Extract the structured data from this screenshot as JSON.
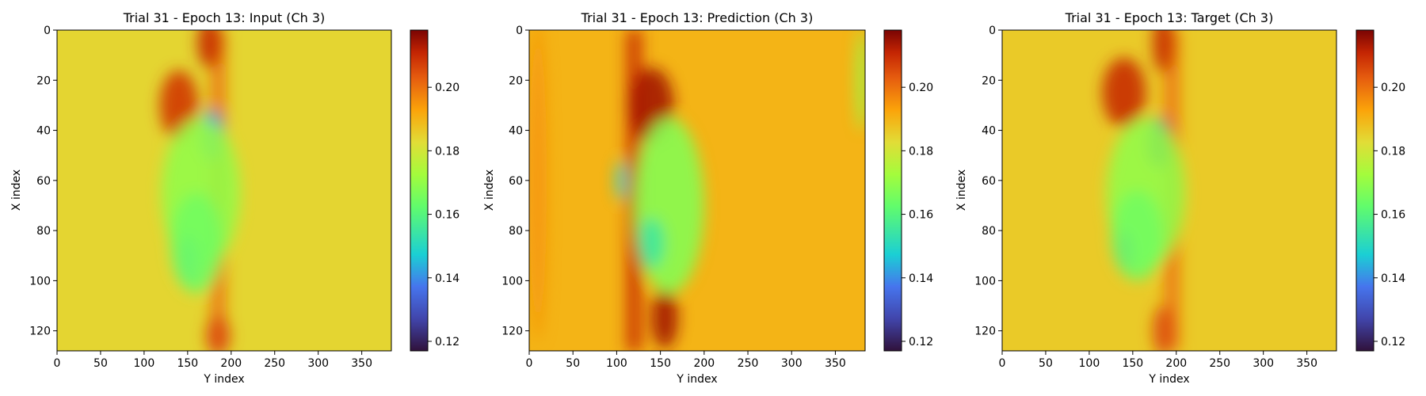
{
  "chart_data": [
    {
      "type": "heatmap",
      "title": "Trial 31 - Epoch 13: Input (Ch 3)",
      "xlabel": "Y index",
      "ylabel": "X index",
      "xlim": [
        0,
        384
      ],
      "ylim": [
        128,
        0
      ],
      "xticks": [
        0,
        50,
        100,
        150,
        200,
        250,
        300,
        350
      ],
      "yticks": [
        0,
        20,
        40,
        60,
        80,
        100,
        120
      ],
      "colorbar": {
        "cmap": "turbo",
        "range": [
          0.117,
          0.218
        ],
        "ticks": [
          0.12,
          0.14,
          0.16,
          0.18,
          0.2
        ],
        "tick_labels": [
          "0.12",
          "0.14",
          "0.16",
          "0.18",
          "0.20"
        ]
      },
      "background_value": 0.184,
      "features": [
        {
          "kind": "band",
          "x": 185,
          "y_range": [
            0,
            128
          ],
          "width": 18,
          "value": 0.2
        },
        {
          "kind": "blob",
          "x": 140,
          "y": 30,
          "rx": 22,
          "ry": 14,
          "value": 0.208
        },
        {
          "kind": "blob",
          "x": 175,
          "y": 5,
          "rx": 14,
          "ry": 10,
          "value": 0.21
        },
        {
          "kind": "blob",
          "x": 185,
          "y": 122,
          "rx": 14,
          "ry": 8,
          "value": 0.205
        },
        {
          "kind": "blob",
          "x": 178,
          "y": 42,
          "rx": 14,
          "ry": 10,
          "value": 0.14
        },
        {
          "kind": "blob",
          "x": 165,
          "y": 65,
          "rx": 45,
          "ry": 30,
          "value": 0.17
        },
        {
          "kind": "blob",
          "x": 150,
          "y": 92,
          "rx": 12,
          "ry": 10,
          "value": 0.145
        },
        {
          "kind": "blob",
          "x": 160,
          "y": 85,
          "rx": 30,
          "ry": 20,
          "value": 0.165
        }
      ]
    },
    {
      "type": "heatmap",
      "title": "Trial 31 - Epoch 13: Prediction (Ch 3)",
      "xlabel": "Y index",
      "ylabel": "X index",
      "xlim": [
        0,
        384
      ],
      "ylim": [
        128,
        0
      ],
      "xticks": [
        0,
        50,
        100,
        150,
        200,
        250,
        300,
        350
      ],
      "yticks": [
        0,
        20,
        40,
        60,
        80,
        100,
        120
      ],
      "colorbar": {
        "cmap": "turbo",
        "range": [
          0.117,
          0.218
        ],
        "ticks": [
          0.12,
          0.14,
          0.16,
          0.18,
          0.2
        ],
        "tick_labels": [
          "0.12",
          "0.14",
          "0.16",
          "0.18",
          "0.20"
        ]
      },
      "background_value": 0.19,
      "features": [
        {
          "kind": "band",
          "x": 120,
          "y_range": [
            0,
            128
          ],
          "width": 18,
          "value": 0.21
        },
        {
          "kind": "blob",
          "x": 140,
          "y": 30,
          "rx": 25,
          "ry": 15,
          "value": 0.214
        },
        {
          "kind": "blob",
          "x": 155,
          "y": 115,
          "rx": 15,
          "ry": 12,
          "value": 0.214
        },
        {
          "kind": "blob",
          "x": 160,
          "y": 70,
          "rx": 40,
          "ry": 35,
          "value": 0.168
        },
        {
          "kind": "blob",
          "x": 140,
          "y": 85,
          "rx": 15,
          "ry": 10,
          "value": 0.155
        },
        {
          "kind": "blob",
          "x": 105,
          "y": 60,
          "rx": 6,
          "ry": 8,
          "value": 0.15
        },
        {
          "kind": "blob",
          "x": 10,
          "y": 60,
          "rx": 10,
          "ry": 64,
          "value": 0.195
        },
        {
          "kind": "blob",
          "x": 380,
          "y": 20,
          "rx": 6,
          "ry": 20,
          "value": 0.17
        }
      ]
    },
    {
      "type": "heatmap",
      "title": "Trial 31 - Epoch 13: Target (Ch 3)",
      "xlabel": "Y index",
      "ylabel": "X index",
      "xlim": [
        0,
        384
      ],
      "ylim": [
        128,
        0
      ],
      "xticks": [
        0,
        50,
        100,
        150,
        200,
        250,
        300,
        350
      ],
      "yticks": [
        0,
        20,
        40,
        60,
        80,
        100,
        120
      ],
      "colorbar": {
        "cmap": "turbo",
        "range": [
          0.117,
          0.218
        ],
        "ticks": [
          0.12,
          0.14,
          0.16,
          0.18,
          0.2
        ],
        "tick_labels": [
          "0.12",
          "0.14",
          "0.16",
          "0.18",
          "0.20"
        ]
      },
      "background_value": 0.186,
      "features": [
        {
          "kind": "band",
          "x": 195,
          "y_range": [
            0,
            128
          ],
          "width": 18,
          "value": 0.2
        },
        {
          "kind": "blob",
          "x": 140,
          "y": 25,
          "rx": 25,
          "ry": 14,
          "value": 0.21
        },
        {
          "kind": "blob",
          "x": 185,
          "y": 5,
          "rx": 12,
          "ry": 12,
          "value": 0.21
        },
        {
          "kind": "blob",
          "x": 185,
          "y": 120,
          "rx": 12,
          "ry": 10,
          "value": 0.205
        },
        {
          "kind": "blob",
          "x": 180,
          "y": 45,
          "rx": 14,
          "ry": 10,
          "value": 0.128
        },
        {
          "kind": "blob",
          "x": 165,
          "y": 65,
          "rx": 45,
          "ry": 30,
          "value": 0.17
        },
        {
          "kind": "blob",
          "x": 140,
          "y": 88,
          "rx": 10,
          "ry": 8,
          "value": 0.135
        },
        {
          "kind": "blob",
          "x": 155,
          "y": 82,
          "rx": 30,
          "ry": 18,
          "value": 0.165
        }
      ]
    }
  ]
}
